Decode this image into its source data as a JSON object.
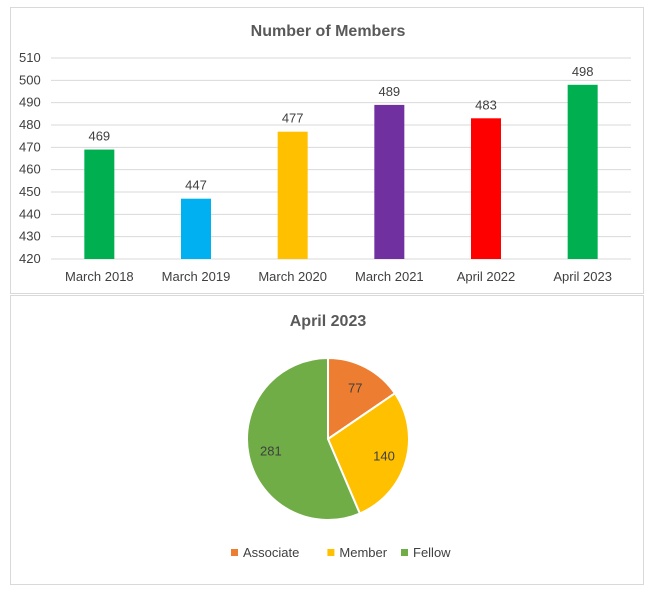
{
  "chart_data": [
    {
      "type": "bar",
      "title": "Number of Members",
      "categories": [
        "March 2018",
        "March 2019",
        "March 2020",
        "March 2021",
        "April 2022",
        "April 2023"
      ],
      "values": [
        469,
        447,
        477,
        489,
        483,
        498
      ],
      "colors": [
        "#00b050",
        "#00b0f0",
        "#ffc000",
        "#7030a0",
        "#ff0000",
        "#00b050"
      ],
      "ylim": [
        420,
        510
      ],
      "yticks": [
        420,
        430,
        440,
        450,
        460,
        470,
        480,
        490,
        500,
        510
      ],
      "grid": true,
      "data_labels": true
    },
    {
      "type": "pie",
      "title": "April 2023",
      "categories": [
        "Associate",
        "Member",
        "Fellow"
      ],
      "values": [
        77,
        140,
        281
      ],
      "colors": [
        "#ed7d31",
        "#ffc000",
        "#70ad47"
      ],
      "legend": "bottom",
      "data_labels": true
    }
  ]
}
